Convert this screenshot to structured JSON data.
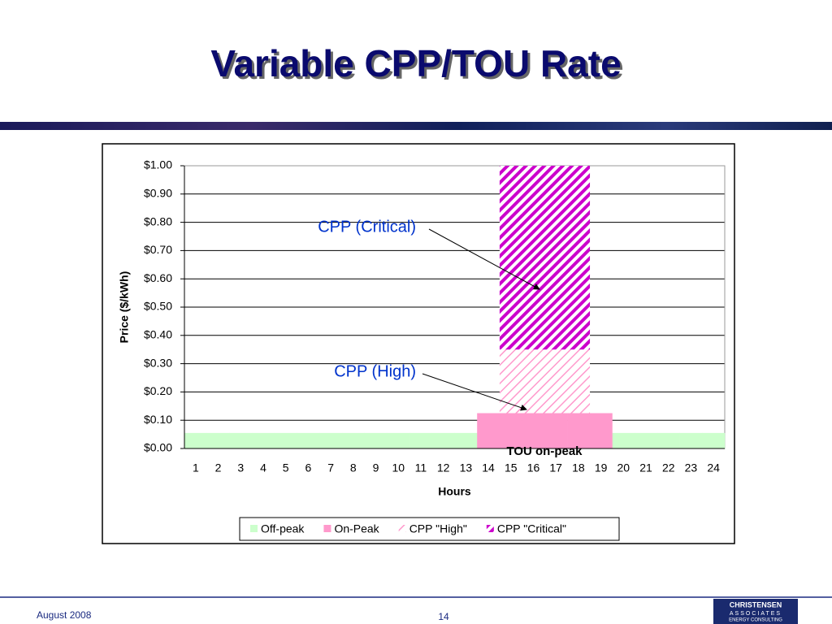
{
  "title": "Variable CPP/TOU Rate",
  "chart_data": {
    "type": "stacked-bar",
    "y_label": "Price ($/kWh)",
    "x_label": "Hours",
    "categories": [
      "1",
      "2",
      "3",
      "4",
      "5",
      "6",
      "7",
      "8",
      "9",
      "10",
      "11",
      "12",
      "13",
      "14",
      "15",
      "16",
      "17",
      "18",
      "19",
      "20",
      "21",
      "22",
      "23",
      "24"
    ],
    "series": [
      {
        "name": "Off-peak",
        "color": "#ccffcc",
        "values": [
          0.055,
          0.055,
          0.055,
          0.055,
          0.055,
          0.055,
          0.055,
          0.055,
          0.055,
          0.055,
          0.055,
          0.055,
          0.055,
          null,
          null,
          null,
          null,
          null,
          null,
          0.055,
          0.055,
          0.055,
          0.055,
          0.055
        ]
      },
      {
        "name": "On-Peak",
        "color": "#ff99cc",
        "values": [
          null,
          null,
          null,
          null,
          null,
          null,
          null,
          null,
          null,
          null,
          null,
          null,
          null,
          0.125,
          0.125,
          0.125,
          0.125,
          0.125,
          0.125,
          null,
          null,
          null,
          null,
          null
        ]
      },
      {
        "name": "CPP \"High\"",
        "color": "#ff99cc",
        "hatch": "light",
        "values": [
          null,
          null,
          null,
          null,
          null,
          null,
          null,
          null,
          null,
          null,
          null,
          null,
          null,
          null,
          0.225,
          0.225,
          0.225,
          0.225,
          null,
          null,
          null,
          null,
          null,
          null
        ]
      },
      {
        "name": "CPP \"Critical\"",
        "color": "#cc00cc",
        "hatch": "bold",
        "values": [
          null,
          null,
          null,
          null,
          null,
          null,
          null,
          null,
          null,
          null,
          null,
          null,
          null,
          null,
          0.65,
          0.65,
          0.65,
          0.65,
          null,
          null,
          null,
          null,
          null,
          null
        ]
      }
    ],
    "ylim": [
      0,
      1
    ],
    "yticks": [
      {
        "value": 0,
        "label": "$0.00"
      },
      {
        "value": 0.1,
        "label": "$0.10"
      },
      {
        "value": 0.2,
        "label": "$0.20"
      },
      {
        "value": 0.3,
        "label": "$0.30"
      },
      {
        "value": 0.4,
        "label": "$0.40"
      },
      {
        "value": 0.5,
        "label": "$0.50"
      },
      {
        "value": 0.6,
        "label": "$0.60"
      },
      {
        "value": 0.7,
        "label": "$0.70"
      },
      {
        "value": 0.8,
        "label": "$0.80"
      },
      {
        "value": 0.9,
        "label": "$0.90"
      },
      {
        "value": 1,
        "label": "$1.00"
      }
    ],
    "grid": true,
    "annotations": [
      "CPP (Critical)",
      "CPP (High)",
      "TOU on-peak"
    ]
  },
  "footer": {
    "date": "August  2008",
    "page": "14",
    "logo": [
      "CHRISTENSEN",
      "ASSOCIATES",
      "ENERGY CONSULTING"
    ]
  }
}
